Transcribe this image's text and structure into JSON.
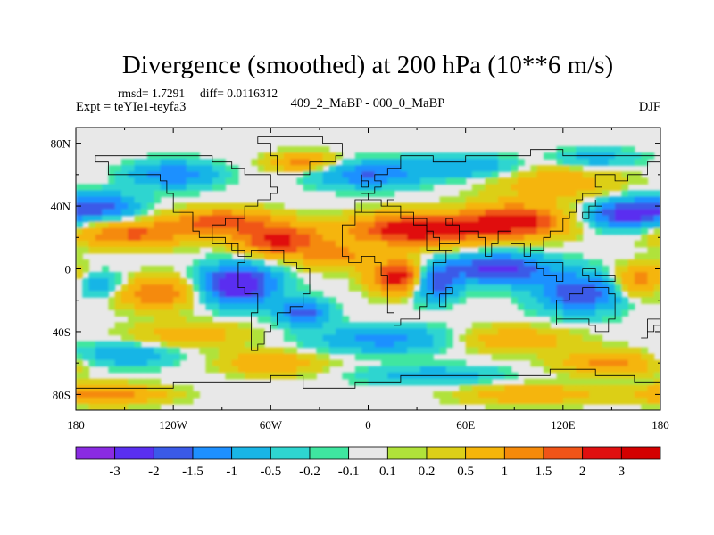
{
  "chart_data": {
    "type": "heatmap",
    "title": "Divergence (smoothed) at 200 hPa (10**6 m/s)",
    "stats": {
      "rmsd_label": "rmsd= 1.7291",
      "diff_label": "diff= 0.0116312"
    },
    "experiment_label": "Expt = teYIe1-teyfa3",
    "comparison_label": "409_2_MaBP - 000_0_MaBP",
    "season_label": "DJF",
    "variable": "divergence",
    "units": "10**6 m/s",
    "x_axis": {
      "range": [
        -180,
        180
      ],
      "ticks": [
        -180,
        -120,
        -60,
        0,
        60,
        120,
        180
      ],
      "tick_labels": [
        "180",
        "120W",
        "60W",
        "0",
        "60E",
        "120E",
        "180"
      ]
    },
    "y_axis": {
      "range": [
        -90,
        90
      ],
      "ticks": [
        80,
        40,
        0,
        -40,
        -80
      ],
      "tick_labels": [
        "80N",
        "40N",
        "0",
        "40S",
        "80S"
      ]
    },
    "colorbar": {
      "labels": [
        "-3",
        "-2",
        "-1.5",
        "-1",
        "-0.5",
        "-0.2",
        "-0.1",
        "0.1",
        "0.2",
        "0.5",
        "1",
        "1.5",
        "2",
        "3"
      ],
      "colors": [
        "#8a2be2",
        "#5a2ff0",
        "#3a5ae8",
        "#1e90ff",
        "#19b5e6",
        "#2ed5d0",
        "#3fe6a0",
        "#e8e8e8",
        "#b0e23a",
        "#dccf18",
        "#f5b50a",
        "#f58a0a",
        "#f05418",
        "#e01010",
        "#d30000"
      ]
    },
    "blobs": [
      {
        "lon": -165,
        "lat": 40,
        "v": -1.8,
        "rx": 22,
        "ry": 8
      },
      {
        "lon": 160,
        "lat": 35,
        "v": -2.5,
        "rx": 22,
        "ry": 9
      },
      {
        "lon": -145,
        "lat": 22,
        "v": 1.6,
        "rx": 35,
        "ry": 8
      },
      {
        "lon": -90,
        "lat": 30,
        "v": 1.8,
        "rx": 30,
        "ry": 8
      },
      {
        "lon": -55,
        "lat": 18,
        "v": 2.2,
        "rx": 25,
        "ry": 10
      },
      {
        "lon": -20,
        "lat": 8,
        "v": 1.2,
        "rx": 20,
        "ry": 8
      },
      {
        "lon": 30,
        "lat": 25,
        "v": 2.6,
        "rx": 40,
        "ry": 10
      },
      {
        "lon": 90,
        "lat": 30,
        "v": 2.4,
        "rx": 30,
        "ry": 10
      },
      {
        "lon": 115,
        "lat": 55,
        "v": 0.8,
        "rx": 40,
        "ry": 12
      },
      {
        "lon": -80,
        "lat": -10,
        "v": -3.0,
        "rx": 22,
        "ry": 12
      },
      {
        "lon": -40,
        "lat": -28,
        "v": -1.8,
        "rx": 15,
        "ry": 8
      },
      {
        "lon": 20,
        "lat": -5,
        "v": 2.6,
        "rx": 18,
        "ry": 10
      },
      {
        "lon": 40,
        "lat": -8,
        "v": -2.2,
        "rx": 14,
        "ry": 11
      },
      {
        "lon": 80,
        "lat": 0,
        "v": -2.4,
        "rx": 30,
        "ry": 9
      },
      {
        "lon": 130,
        "lat": -15,
        "v": -2.0,
        "rx": 25,
        "ry": 12
      },
      {
        "lon": 170,
        "lat": -8,
        "v": 1.6,
        "rx": 18,
        "ry": 10
      },
      {
        "lon": -170,
        "lat": -10,
        "v": -1.2,
        "rx": 20,
        "ry": 8
      },
      {
        "lon": -130,
        "lat": -15,
        "v": 1.5,
        "rx": 25,
        "ry": 10
      },
      {
        "lon": -110,
        "lat": -42,
        "v": 0.8,
        "rx": 35,
        "ry": 8
      },
      {
        "lon": 10,
        "lat": -45,
        "v": -1.2,
        "rx": 40,
        "ry": 8
      },
      {
        "lon": 90,
        "lat": -45,
        "v": 0.9,
        "rx": 35,
        "ry": 8
      },
      {
        "lon": -150,
        "lat": -55,
        "v": -1.0,
        "rx": 30,
        "ry": 7
      },
      {
        "lon": 150,
        "lat": -60,
        "v": 1.2,
        "rx": 30,
        "ry": 8
      },
      {
        "lon": -60,
        "lat": -60,
        "v": 1.0,
        "rx": 30,
        "ry": 7
      },
      {
        "lon": 40,
        "lat": -68,
        "v": -0.8,
        "rx": 40,
        "ry": 6
      },
      {
        "lon": -120,
        "lat": 60,
        "v": -1.5,
        "rx": 25,
        "ry": 8
      },
      {
        "lon": 0,
        "lat": 60,
        "v": -1.5,
        "rx": 30,
        "ry": 8
      },
      {
        "lon": -40,
        "lat": 68,
        "v": 1.2,
        "rx": 20,
        "ry": 6
      },
      {
        "lon": 60,
        "lat": 65,
        "v": -1.0,
        "rx": 35,
        "ry": 7
      },
      {
        "lon": 140,
        "lat": 70,
        "v": -0.8,
        "rx": 25,
        "ry": 6
      },
      {
        "lon": -160,
        "lat": -80,
        "v": 1.3,
        "rx": 35,
        "ry": 6
      },
      {
        "lon": 100,
        "lat": -80,
        "v": 1.0,
        "rx": 40,
        "ry": 6
      }
    ]
  }
}
